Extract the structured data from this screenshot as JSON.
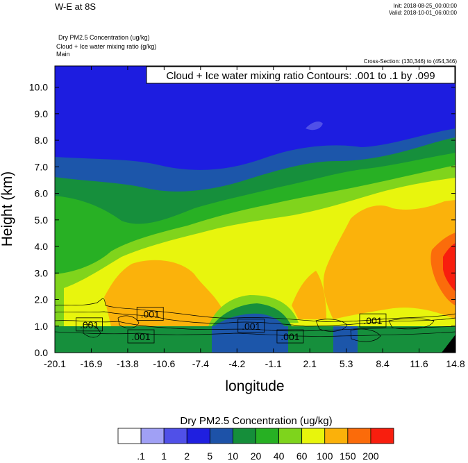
{
  "header": {
    "title": "W-E at 8S",
    "init": "Init: 2018-08-25_00:00:00",
    "valid": "Valid: 2018-10-01_06:00:00",
    "line1": "Dry PM2.5 Concentration   (ug/kg)",
    "line2": "Cloud + Ice water mixing ratio   (g/kg)",
    "line3": "Main",
    "cross_section": "Cross-Section: (130,346) to (454,346)"
  },
  "chart_data": {
    "type": "heatmap",
    "contour_label": "Cloud + Ice water mixing ratio Contours: .001 to .1 by .099",
    "xlabel": "longitude",
    "ylabel": "Height (km)",
    "xlim": [
      -20.1,
      14.8
    ],
    "ylim": [
      0,
      10.8
    ],
    "x_ticks": [
      "-20.1",
      "-16.9",
      "-13.8",
      "-10.6",
      "-7.4",
      "-4.2",
      "-1.1",
      "2.1",
      "5.3",
      "8.4",
      "11.6",
      "14.8"
    ],
    "y_ticks": [
      "0.0",
      "1.0",
      "2.0",
      "3.0",
      "4.0",
      "5.0",
      "6.0",
      "7.0",
      "8.0",
      "9.0",
      "10.0"
    ],
    "contour_labels": [
      {
        "text": ".001",
        "x": -17.1,
        "y": 1.05
      },
      {
        "text": ".001",
        "x": -11.8,
        "y": 1.45
      },
      {
        "text": ".001",
        "x": -12.6,
        "y": 0.6
      },
      {
        "text": ".001",
        "x": -3.0,
        "y": 1.0
      },
      {
        "text": ".001",
        "x": 0.4,
        "y": 0.6
      },
      {
        "text": ".001",
        "x": 7.6,
        "y": 1.2
      }
    ],
    "colorbar": {
      "title": "Dry PM2.5 Concentration  (ug/kg)",
      "labels": [
        ".1",
        "1",
        "2",
        "5",
        "10",
        "20",
        "40",
        "60",
        "100",
        "150",
        "200"
      ],
      "colors": [
        "#ffffff",
        "#a0a0f5",
        "#5050e8",
        "#1f1fe0",
        "#1d52a8",
        "#158e3a",
        "#27b023",
        "#7ed41c",
        "#e8f50c",
        "#fbb10a",
        "#fb6b0a",
        "#f81e0e"
      ]
    }
  }
}
